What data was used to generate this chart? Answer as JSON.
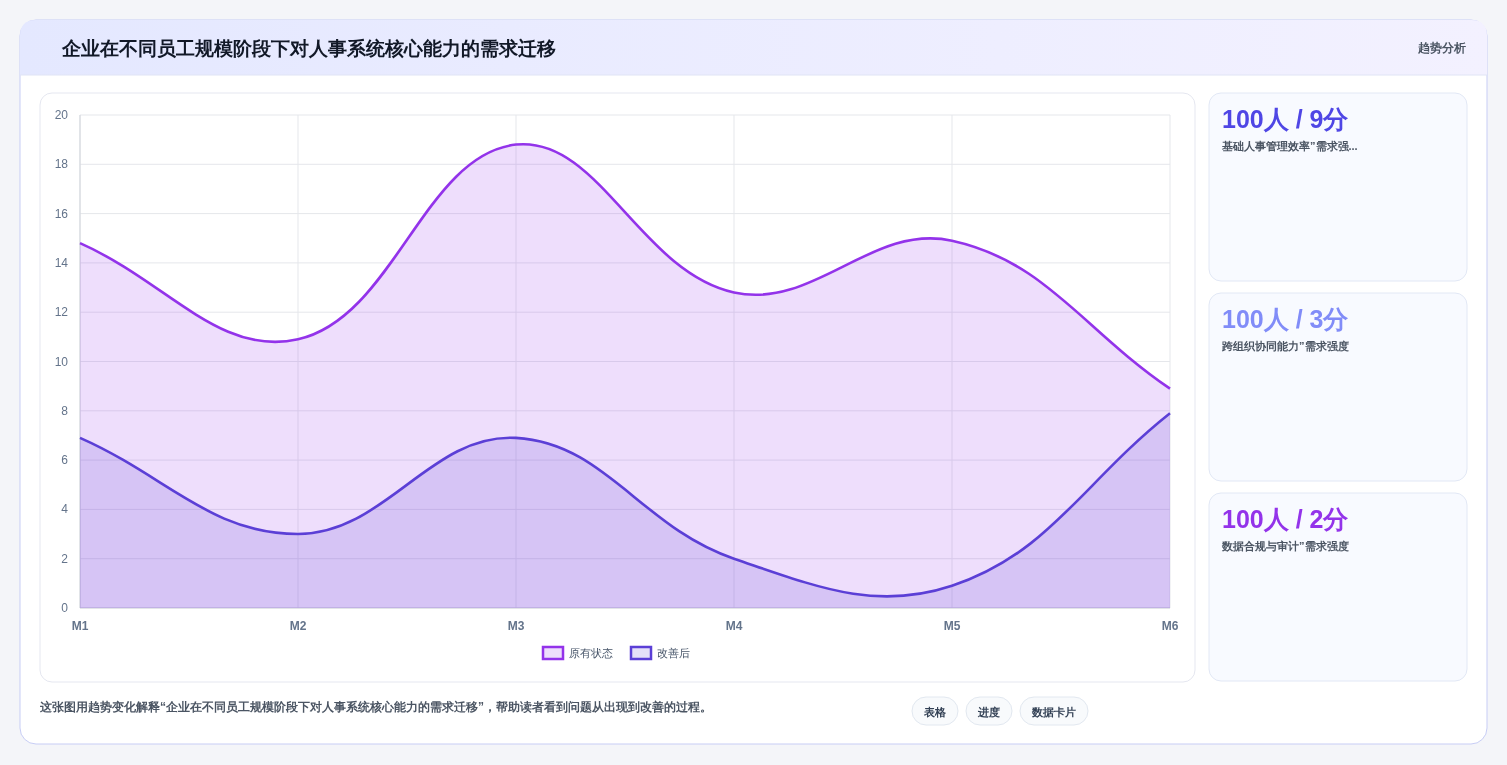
{
  "chart_data": [
    {
      "type": "area",
      "title": "企业在不同员工规模阶段下对人事系统核心能力的需求迁移",
      "categories": [
        "M1",
        "M2",
        "M3",
        "M4",
        "M5",
        "M6"
      ],
      "series": [
        {
          "name": "原有状态",
          "color": "#9333ea",
          "values": [
            14.8,
            10.9,
            18.8,
            12.8,
            14.9,
            8.9
          ]
        },
        {
          "name": "改善后",
          "color": "#5b3fd6",
          "values": [
            6.9,
            3,
            6.9,
            2,
            0.9,
            7.9
          ]
        }
      ],
      "ylim": [
        0,
        20
      ],
      "yticks": [
        0,
        2,
        4,
        6,
        8,
        10,
        12,
        14,
        16,
        18,
        20
      ],
      "grid": true,
      "legend": "bottom",
      "marker": "none",
      "line_style": "solid",
      "annotations": [
        "这张图用趋势变化解释“企业在不同员工规模阶段下对人事系统核心能力的需求迁移”，帮助读者看到问题从出现到改善的过程。",
        "表格",
        "进度",
        "数据卡片"
      ]
    },
    {
      "type": "other",
      "title": "趋势分析",
      "annotations": [
        "100人 / 9分",
        "基础人事管理效率”需求强...",
        "100人 / 3分",
        "跨组织协同能力”需求强度",
        "100人 / 2分",
        "数据合规与审计”需求强度"
      ],
      "colors": [
        "#4f46e5",
        "#818cf8",
        "#9333ea"
      ]
    }
  ]
}
